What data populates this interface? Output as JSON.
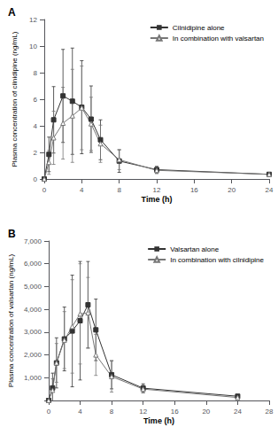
{
  "chart_data": [
    {
      "type": "line",
      "title": "A",
      "xlabel": "Time (h)",
      "ylabel": "Plasma concentration of cilnidipine (ng/mL)",
      "xlim": [
        0,
        24
      ],
      "xticks": [
        0,
        4,
        8,
        12,
        16,
        20,
        24
      ],
      "ylim": [
        0,
        12
      ],
      "yticks": [
        0,
        2,
        4,
        6,
        8,
        10,
        12
      ],
      "grid": false,
      "legend": "upper right",
      "series": [
        {
          "name": "Cilnidipine alone",
          "color": "#333333",
          "marker": "square",
          "line_style": "solid",
          "x": [
            0,
            0.5,
            1,
            2,
            3,
            4,
            5,
            6,
            8,
            12,
            24
          ],
          "values": [
            0,
            1.85,
            4.45,
            6.25,
            5.85,
            5.4,
            4.5,
            2.95,
            1.35,
            0.7,
            0.35
          ],
          "yerr": [
            0,
            1.3,
            2.5,
            3.5,
            4.0,
            3.5,
            2.5,
            1.5,
            0.85,
            0.25,
            0.15
          ]
        },
        {
          "name": "In combination with valsartan",
          "color": "#777777",
          "marker": "triangle-open",
          "line_style": "solid",
          "x": [
            0,
            0.5,
            1,
            2,
            3,
            4,
            5,
            6,
            8,
            12,
            24
          ],
          "values": [
            0,
            1.25,
            3.1,
            4.2,
            4.75,
            5.35,
            4.15,
            2.65,
            1.45,
            0.65,
            0.35
          ],
          "yerr": [
            0,
            0.9,
            2.0,
            2.7,
            3.5,
            3.15,
            2.0,
            1.4,
            0.75,
            0.25,
            0.15
          ]
        }
      ]
    },
    {
      "type": "line",
      "title": "B",
      "xlabel": "Time (h)",
      "ylabel": "Plasma concentration of valsartan (ng/mL)",
      "xlim": [
        0,
        28
      ],
      "xticks": [
        0,
        4,
        8,
        12,
        16,
        20,
        24,
        28
      ],
      "ylim": [
        0,
        7000
      ],
      "yticks": [
        {
          "value": 0,
          "label": null
        },
        {
          "value": 1000,
          "label": "1,000"
        },
        {
          "value": 2000,
          "label": "2,000"
        },
        {
          "value": 3000,
          "label": "3,000"
        },
        {
          "value": 4000,
          "label": "4,000"
        },
        {
          "value": 5000,
          "label": "5,000"
        },
        {
          "value": 6000,
          "label": "6,000"
        },
        {
          "value": 7000,
          "label": "7,000"
        }
      ],
      "grid": false,
      "legend": "upper right",
      "series": [
        {
          "name": "Valsartan alone",
          "color": "#333333",
          "marker": "square",
          "line_style": "solid",
          "x": [
            0,
            0.5,
            1,
            2,
            3,
            4,
            5,
            6,
            8,
            12,
            24
          ],
          "values": [
            0,
            550,
            1650,
            2700,
            3050,
            3500,
            4200,
            3100,
            1130,
            540,
            185
          ],
          "yerr": [
            0,
            650,
            1100,
            1400,
            2450,
            2600,
            1900,
            1350,
            620,
            190,
            75
          ]
        },
        {
          "name": "In combination with cilnidipine",
          "color": "#777777",
          "marker": "triangle-open",
          "line_style": "solid",
          "x": [
            0,
            0.5,
            1,
            2,
            3,
            4,
            5,
            6,
            8,
            12,
            24
          ],
          "values": [
            0,
            450,
            1650,
            2650,
            3250,
            3800,
            3850,
            2000,
            1050,
            500,
            130
          ],
          "yerr": [
            0,
            500,
            850,
            1250,
            2050,
            2200,
            1550,
            900,
            680,
            170,
            55
          ]
        }
      ]
    }
  ]
}
